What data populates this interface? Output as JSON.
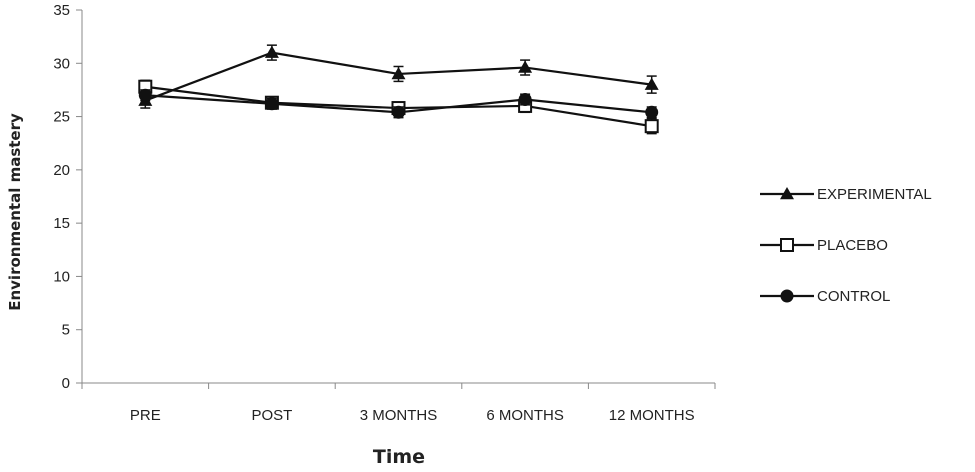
{
  "chart_data": {
    "type": "line",
    "title": "",
    "xlabel": "Time",
    "ylabel": "Environmental mastery",
    "categories": [
      "PRE",
      "POST",
      "3 MONTHS",
      "6 MONTHS",
      "12 MONTHS"
    ],
    "ylim": [
      0,
      35
    ],
    "yticks": [
      0,
      5,
      10,
      15,
      20,
      25,
      30,
      35
    ],
    "grid": false,
    "legend_position": "right",
    "series": [
      {
        "name": "EXPERIMENTAL",
        "marker": "filled-triangle",
        "color": "#111111",
        "values": [
          26.5,
          31.0,
          29.0,
          29.6,
          28.0
        ],
        "error": [
          0.7,
          0.7,
          0.7,
          0.7,
          0.8
        ]
      },
      {
        "name": "PLACEBO",
        "marker": "open-square",
        "color": "#111111",
        "values": [
          27.8,
          26.3,
          25.8,
          26.0,
          24.1
        ],
        "error": [
          0.6,
          0.5,
          0.5,
          0.6,
          0.7
        ]
      },
      {
        "name": "CONTROL",
        "marker": "filled-circle",
        "color": "#111111",
        "values": [
          27.0,
          26.2,
          25.4,
          26.6,
          25.4
        ],
        "error": [
          0.5,
          0.5,
          0.5,
          0.5,
          0.5
        ]
      }
    ]
  }
}
